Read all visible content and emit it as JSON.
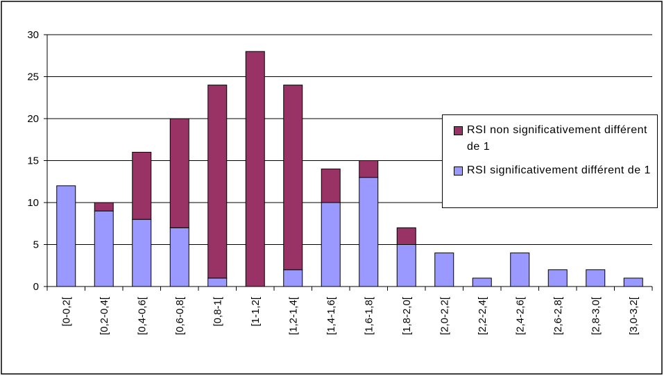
{
  "chart_data": {
    "type": "stacked_bar",
    "categories": [
      "[0-0,2[",
      "[0,2-0,4[",
      "[0,4-0,6[",
      "[0,6-0,8[",
      "[0,8-1[",
      "[1-1,2[",
      "[1,2-1,4[",
      "[1,4-1,6[",
      "[1,6-1,8[",
      "[1,8-2,0[",
      "[2,0-2,2[",
      "[2,2-2,4[",
      "[2,4-2,6[",
      "[2,6-2,8[",
      "[2,8-3,0[",
      "[3,0-3,2["
    ],
    "series": [
      {
        "name": "RSI significativement différent de 1",
        "color": "#9999ff",
        "values": [
          12,
          9,
          8,
          7,
          1,
          0,
          2,
          10,
          13,
          5,
          4,
          1,
          4,
          2,
          2,
          1
        ]
      },
      {
        "name": "RSI non significativement différent de 1",
        "color": "#993366",
        "values": [
          0,
          1,
          8,
          13,
          23,
          28,
          22,
          4,
          2,
          2,
          0,
          0,
          0,
          0,
          0,
          0
        ]
      }
    ],
    "ylim": [
      0,
      30
    ],
    "yticks": [
      0,
      5,
      10,
      15,
      20,
      25,
      30
    ],
    "grid": true,
    "legend": "right"
  }
}
